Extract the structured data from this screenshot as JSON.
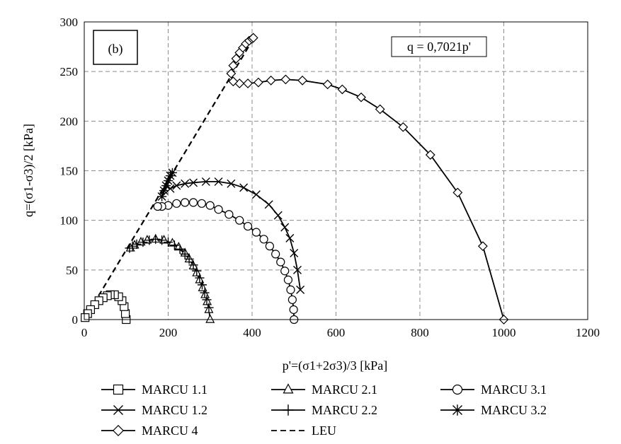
{
  "chart_data": {
    "type": "scatter",
    "panel_label": "(b)",
    "equation": "q = 0,7021p'",
    "xlabel": "p'=(σ1+2σ3)/3 [kPa]",
    "ylabel": "q=(σ1-σ3)/2 [kPa]",
    "xlim": [
      0,
      1200
    ],
    "ylim": [
      0,
      300
    ],
    "x_ticks": [
      0,
      200,
      400,
      600,
      800,
      1000,
      1200
    ],
    "y_ticks": [
      0,
      50,
      100,
      150,
      200,
      250,
      300
    ],
    "x_tick_labels": [
      "0",
      "200",
      "400",
      "600",
      "800",
      "1000",
      "1200"
    ],
    "y_tick_labels": [
      "0",
      "50",
      "100",
      "150",
      "200",
      "250",
      "300"
    ],
    "grid": true,
    "legend_position": "bottom",
    "line_color": "#000000",
    "series": [
      {
        "name": "MARCU 1.1",
        "marker": "square",
        "x": [
          100,
          98,
          95,
          90,
          82,
          72,
          62,
          55,
          45,
          35,
          25,
          15,
          8,
          2
        ],
        "y": [
          0,
          6,
          13,
          19,
          23,
          25,
          25,
          24,
          22,
          19,
          15,
          10,
          6,
          2
        ]
      },
      {
        "name": "MARCU 2.1",
        "marker": "triangle",
        "x": [
          300,
          297,
          293,
          288,
          282,
          275,
          268,
          260,
          250,
          240,
          225,
          210,
          190,
          170,
          150,
          135,
          120,
          110
        ],
        "y": [
          0,
          10,
          18,
          25,
          32,
          40,
          47,
          54,
          61,
          67,
          73,
          77,
          80,
          81,
          80,
          78,
          75,
          72
        ]
      },
      {
        "name": "MARCU 3.1",
        "marker": "circle",
        "x": [
          500,
          499,
          496,
          492,
          486,
          478,
          468,
          456,
          442,
          428,
          410,
          390,
          370,
          345,
          320,
          300,
          280,
          260,
          240,
          220,
          200,
          185,
          175
        ],
        "y": [
          0,
          10,
          20,
          30,
          40,
          49,
          58,
          66,
          74,
          81,
          88,
          94,
          100,
          106,
          111,
          115,
          117,
          118,
          118,
          117,
          115,
          114,
          114
        ]
      },
      {
        "name": "MARCU 1.2",
        "marker": "x",
        "x": [
          515,
          508,
          500,
          490,
          478,
          462,
          440,
          410,
          380,
          350,
          320,
          290,
          260,
          240,
          220,
          205
        ],
        "y": [
          30,
          50,
          67,
          82,
          93,
          105,
          116,
          126,
          133,
          137,
          139,
          139,
          138,
          137,
          135,
          132
        ]
      },
      {
        "name": "MARCU 2.2",
        "marker": "plus",
        "x": [
          297,
          292,
          287,
          281,
          275,
          268,
          260,
          250,
          240,
          228,
          215,
          200,
          185,
          170,
          155,
          140,
          125,
          115,
          108
        ],
        "y": [
          12,
          20,
          27,
          35,
          42,
          49,
          55,
          61,
          66,
          71,
          75,
          78,
          80,
          81,
          80,
          78,
          76,
          74,
          72
        ]
      },
      {
        "name": "MARCU 3.2",
        "marker": "asterisk",
        "x": [
          185,
          190,
          195,
          200,
          205,
          210
        ],
        "y": [
          124,
          130,
          135,
          140,
          145,
          148
        ]
      },
      {
        "name": "MARCU 4",
        "marker": "diamond",
        "x": [
          1000,
          950,
          890,
          825,
          760,
          705,
          660,
          615,
          580,
          520,
          480,
          445,
          415,
          390,
          370,
          355,
          350,
          355,
          362,
          370,
          378,
          385,
          393,
          400,
          403
        ],
        "y": [
          0,
          74,
          128,
          166,
          194,
          212,
          224,
          232,
          237,
          241,
          242,
          241,
          239,
          238,
          238,
          240,
          248,
          256,
          263,
          269,
          274,
          278,
          281,
          283,
          284
        ]
      }
    ],
    "leu_line": {
      "name": "LEU",
      "style": "dashed",
      "slope": 0.7021,
      "x": [
        0,
        405
      ],
      "y": [
        0,
        284.35
      ]
    },
    "legend": [
      "MARCU 1.1",
      "MARCU 2.1",
      "MARCU 3.1",
      "MARCU 1.2",
      "MARCU 2.2",
      "MARCU 3.2",
      "MARCU 4",
      "LEU"
    ]
  }
}
